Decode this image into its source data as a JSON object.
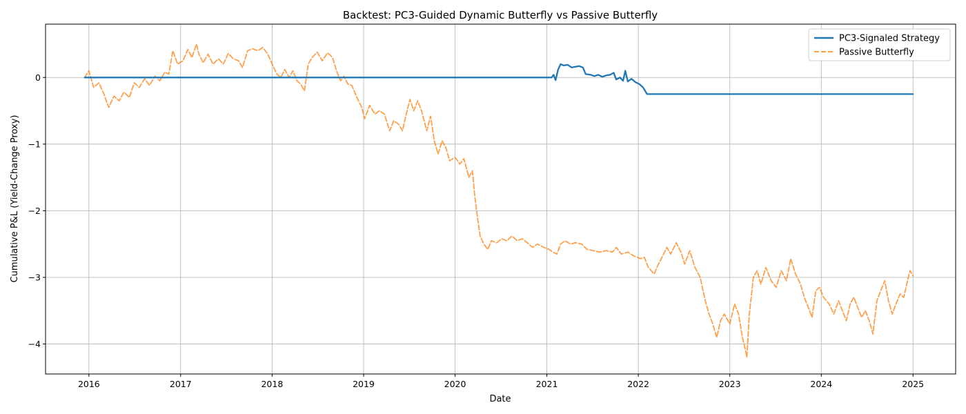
{
  "chart_data": {
    "type": "line",
    "title": "Backtest: PC3-Guided Dynamic Butterfly vs Passive Butterfly",
    "xlabel": "Date",
    "ylabel": "Cumulative P&L (Yield-Change Proxy)",
    "xlim": [
      "2015-07-12",
      "2025-06-20"
    ],
    "ylim": [
      -4.45,
      0.8
    ],
    "x_ticks": [
      "2016-01-01",
      "2017-01-01",
      "2018-01-01",
      "2019-01-01",
      "2020-01-01",
      "2021-01-01",
      "2022-01-01",
      "2023-01-01",
      "2024-01-01",
      "2025-01-01"
    ],
    "x_tick_labels": [
      "2016",
      "2017",
      "2018",
      "2019",
      "2020",
      "2021",
      "2022",
      "2023",
      "2024",
      "2025"
    ],
    "y_ticks": [
      0,
      -1,
      -2,
      -3,
      -4
    ],
    "y_tick_labels": [
      "0",
      "−1",
      "−2",
      "−3",
      "−4"
    ],
    "grid": true,
    "legend_position": "top-right",
    "series": [
      {
        "name": "PC3-Signaled Strategy",
        "color": "#1f77b4",
        "style": "solid",
        "points": [
          [
            "2015-12-15",
            0
          ],
          [
            "2021-01-20",
            0
          ],
          [
            "2021-01-28",
            0.04
          ],
          [
            "2021-02-05",
            -0.04
          ],
          [
            "2021-02-15",
            0.12
          ],
          [
            "2021-02-25",
            0.2
          ],
          [
            "2021-03-10",
            0.18
          ],
          [
            "2021-03-25",
            0.19
          ],
          [
            "2021-04-10",
            0.15
          ],
          [
            "2021-04-25",
            0.16
          ],
          [
            "2021-05-10",
            0.17
          ],
          [
            "2021-05-25",
            0.15
          ],
          [
            "2021-06-05",
            0.05
          ],
          [
            "2021-06-25",
            0.04
          ],
          [
            "2021-07-10",
            0.02
          ],
          [
            "2021-07-25",
            0.04
          ],
          [
            "2021-08-10",
            0.01
          ],
          [
            "2021-08-25",
            0.03
          ],
          [
            "2021-09-10",
            0.04
          ],
          [
            "2021-09-25",
            0.07
          ],
          [
            "2021-10-05",
            -0.03
          ],
          [
            "2021-10-20",
            0.0
          ],
          [
            "2021-11-01",
            -0.05
          ],
          [
            "2021-11-10",
            0.1
          ],
          [
            "2021-11-20",
            -0.06
          ],
          [
            "2021-12-05",
            -0.02
          ],
          [
            "2021-12-20",
            -0.07
          ],
          [
            "2022-01-05",
            -0.1
          ],
          [
            "2022-01-20",
            -0.15
          ],
          [
            "2022-02-05",
            -0.25
          ],
          [
            "2025-01-01",
            -0.25
          ]
        ]
      },
      {
        "name": "Passive Butterfly",
        "color": "#ff7f0e",
        "style": "dashed",
        "points": [
          [
            "2015-12-15",
            0.0
          ],
          [
            "2016-01-01",
            0.1
          ],
          [
            "2016-01-20",
            -0.15
          ],
          [
            "2016-02-10",
            -0.08
          ],
          [
            "2016-03-01",
            -0.25
          ],
          [
            "2016-03-20",
            -0.45
          ],
          [
            "2016-04-10",
            -0.28
          ],
          [
            "2016-05-01",
            -0.35
          ],
          [
            "2016-05-20",
            -0.22
          ],
          [
            "2016-06-10",
            -0.3
          ],
          [
            "2016-06-30",
            -0.08
          ],
          [
            "2016-07-20",
            -0.15
          ],
          [
            "2016-08-10",
            -0.02
          ],
          [
            "2016-08-30",
            -0.12
          ],
          [
            "2016-09-20",
            0.02
          ],
          [
            "2016-10-10",
            -0.05
          ],
          [
            "2016-10-30",
            0.08
          ],
          [
            "2016-11-15",
            0.05
          ],
          [
            "2016-12-01",
            0.4
          ],
          [
            "2016-12-20",
            0.2
          ],
          [
            "2017-01-10",
            0.25
          ],
          [
            "2017-01-30",
            0.42
          ],
          [
            "2017-02-15",
            0.3
          ],
          [
            "2017-03-05",
            0.5
          ],
          [
            "2017-03-15",
            0.35
          ],
          [
            "2017-04-01",
            0.22
          ],
          [
            "2017-04-20",
            0.35
          ],
          [
            "2017-05-10",
            0.2
          ],
          [
            "2017-06-01",
            0.28
          ],
          [
            "2017-06-20",
            0.2
          ],
          [
            "2017-07-10",
            0.36
          ],
          [
            "2017-07-30",
            0.28
          ],
          [
            "2017-08-20",
            0.25
          ],
          [
            "2017-09-05",
            0.15
          ],
          [
            "2017-09-25",
            0.4
          ],
          [
            "2017-10-15",
            0.43
          ],
          [
            "2017-11-05",
            0.4
          ],
          [
            "2017-11-25",
            0.45
          ],
          [
            "2017-12-15",
            0.35
          ],
          [
            "2018-01-01",
            0.2
          ],
          [
            "2018-01-20",
            0.05
          ],
          [
            "2018-02-05",
            0.0
          ],
          [
            "2018-02-20",
            0.12
          ],
          [
            "2018-03-10",
            0.0
          ],
          [
            "2018-03-25",
            0.1
          ],
          [
            "2018-04-10",
            -0.05
          ],
          [
            "2018-04-25",
            -0.1
          ],
          [
            "2018-05-10",
            -0.2
          ],
          [
            "2018-05-25",
            0.2
          ],
          [
            "2018-06-10",
            0.3
          ],
          [
            "2018-06-30",
            0.38
          ],
          [
            "2018-07-20",
            0.25
          ],
          [
            "2018-08-10",
            0.37
          ],
          [
            "2018-08-30",
            0.3
          ],
          [
            "2018-09-15",
            0.1
          ],
          [
            "2018-10-01",
            -0.05
          ],
          [
            "2018-10-15",
            0.02
          ],
          [
            "2018-10-30",
            -0.1
          ],
          [
            "2018-11-15",
            -0.12
          ],
          [
            "2018-12-05",
            -0.3
          ],
          [
            "2018-12-25",
            -0.45
          ],
          [
            "2019-01-05",
            -0.62
          ],
          [
            "2019-01-25",
            -0.42
          ],
          [
            "2019-02-15",
            -0.55
          ],
          [
            "2019-03-05",
            -0.5
          ],
          [
            "2019-03-25",
            -0.55
          ],
          [
            "2019-04-15",
            -0.8
          ],
          [
            "2019-05-01",
            -0.65
          ],
          [
            "2019-05-20",
            -0.7
          ],
          [
            "2019-06-05",
            -0.8
          ],
          [
            "2019-06-20",
            -0.55
          ],
          [
            "2019-07-05",
            -0.33
          ],
          [
            "2019-07-20",
            -0.5
          ],
          [
            "2019-08-05",
            -0.35
          ],
          [
            "2019-08-20",
            -0.5
          ],
          [
            "2019-09-10",
            -0.8
          ],
          [
            "2019-09-25",
            -0.58
          ],
          [
            "2019-10-10",
            -0.95
          ],
          [
            "2019-10-25",
            -1.15
          ],
          [
            "2019-11-10",
            -0.95
          ],
          [
            "2019-11-25",
            -1.05
          ],
          [
            "2019-12-10",
            -1.25
          ],
          [
            "2020-01-01",
            -1.2
          ],
          [
            "2020-01-20",
            -1.3
          ],
          [
            "2020-02-05",
            -1.22
          ],
          [
            "2020-02-25",
            -1.5
          ],
          [
            "2020-03-10",
            -1.4
          ],
          [
            "2020-03-20",
            -1.8
          ],
          [
            "2020-04-01",
            -2.15
          ],
          [
            "2020-04-10",
            -2.38
          ],
          [
            "2020-04-25",
            -2.5
          ],
          [
            "2020-05-10",
            -2.58
          ],
          [
            "2020-05-25",
            -2.45
          ],
          [
            "2020-06-15",
            -2.48
          ],
          [
            "2020-07-05",
            -2.42
          ],
          [
            "2020-07-25",
            -2.45
          ],
          [
            "2020-08-15",
            -2.38
          ],
          [
            "2020-09-05",
            -2.45
          ],
          [
            "2020-09-25",
            -2.42
          ],
          [
            "2020-10-15",
            -2.48
          ],
          [
            "2020-11-05",
            -2.55
          ],
          [
            "2020-11-25",
            -2.5
          ],
          [
            "2020-12-20",
            -2.55
          ],
          [
            "2021-01-10",
            -2.58
          ],
          [
            "2021-01-25",
            -2.62
          ],
          [
            "2021-02-10",
            -2.65
          ],
          [
            "2021-02-25",
            -2.5
          ],
          [
            "2021-03-15",
            -2.45
          ],
          [
            "2021-04-05",
            -2.5
          ],
          [
            "2021-04-25",
            -2.48
          ],
          [
            "2021-05-20",
            -2.5
          ],
          [
            "2021-06-10",
            -2.58
          ],
          [
            "2021-07-05",
            -2.6
          ],
          [
            "2021-08-01",
            -2.62
          ],
          [
            "2021-08-25",
            -2.6
          ],
          [
            "2021-09-20",
            -2.62
          ],
          [
            "2021-10-05",
            -2.55
          ],
          [
            "2021-10-25",
            -2.65
          ],
          [
            "2021-11-20",
            -2.62
          ],
          [
            "2021-12-15",
            -2.68
          ],
          [
            "2022-01-10",
            -2.72
          ],
          [
            "2022-01-25",
            -2.7
          ],
          [
            "2022-02-10",
            -2.85
          ],
          [
            "2022-03-05",
            -2.95
          ],
          [
            "2022-03-20",
            -2.82
          ],
          [
            "2022-04-05",
            -2.7
          ],
          [
            "2022-04-25",
            -2.55
          ],
          [
            "2022-05-10",
            -2.65
          ],
          [
            "2022-06-01",
            -2.48
          ],
          [
            "2022-06-20",
            -2.62
          ],
          [
            "2022-07-05",
            -2.8
          ],
          [
            "2022-07-25",
            -2.6
          ],
          [
            "2022-08-15",
            -2.85
          ],
          [
            "2022-09-05",
            -3.0
          ],
          [
            "2022-09-25",
            -3.35
          ],
          [
            "2022-10-10",
            -3.55
          ],
          [
            "2022-10-25",
            -3.7
          ],
          [
            "2022-11-10",
            -3.9
          ],
          [
            "2022-11-25",
            -3.65
          ],
          [
            "2022-12-10",
            -3.55
          ],
          [
            "2023-01-01",
            -3.7
          ],
          [
            "2023-01-20",
            -3.4
          ],
          [
            "2023-02-05",
            -3.55
          ],
          [
            "2023-02-20",
            -3.9
          ],
          [
            "2023-03-05",
            -4.1
          ],
          [
            "2023-03-10",
            -4.2
          ],
          [
            "2023-03-20",
            -3.55
          ],
          [
            "2023-04-05",
            -3.0
          ],
          [
            "2023-04-20",
            -2.9
          ],
          [
            "2023-05-05",
            -3.1
          ],
          [
            "2023-05-25",
            -2.85
          ],
          [
            "2023-06-15",
            -3.05
          ],
          [
            "2023-07-05",
            -3.15
          ],
          [
            "2023-07-25",
            -2.9
          ],
          [
            "2023-08-15",
            -3.05
          ],
          [
            "2023-09-01",
            -2.72
          ],
          [
            "2023-09-20",
            -2.95
          ],
          [
            "2023-10-10",
            -3.1
          ],
          [
            "2023-10-25",
            -3.3
          ],
          [
            "2023-11-10",
            -3.45
          ],
          [
            "2023-11-25",
            -3.6
          ],
          [
            "2023-12-10",
            -3.2
          ],
          [
            "2023-12-25",
            -3.15
          ],
          [
            "2024-01-10",
            -3.3
          ],
          [
            "2024-02-01",
            -3.4
          ],
          [
            "2024-02-20",
            -3.55
          ],
          [
            "2024-03-10",
            -3.35
          ],
          [
            "2024-03-25",
            -3.5
          ],
          [
            "2024-04-10",
            -3.65
          ],
          [
            "2024-04-25",
            -3.4
          ],
          [
            "2024-05-10",
            -3.3
          ],
          [
            "2024-05-25",
            -3.45
          ],
          [
            "2024-06-10",
            -3.6
          ],
          [
            "2024-06-25",
            -3.5
          ],
          [
            "2024-07-10",
            -3.65
          ],
          [
            "2024-07-25",
            -3.85
          ],
          [
            "2024-08-10",
            -3.35
          ],
          [
            "2024-08-25",
            -3.2
          ],
          [
            "2024-09-10",
            -3.05
          ],
          [
            "2024-09-25",
            -3.35
          ],
          [
            "2024-10-10",
            -3.55
          ],
          [
            "2024-10-25",
            -3.4
          ],
          [
            "2024-11-10",
            -3.25
          ],
          [
            "2024-11-25",
            -3.3
          ],
          [
            "2024-12-10",
            -3.05
          ],
          [
            "2024-12-20",
            -2.9
          ],
          [
            "2025-01-01",
            -2.98
          ]
        ]
      }
    ]
  }
}
